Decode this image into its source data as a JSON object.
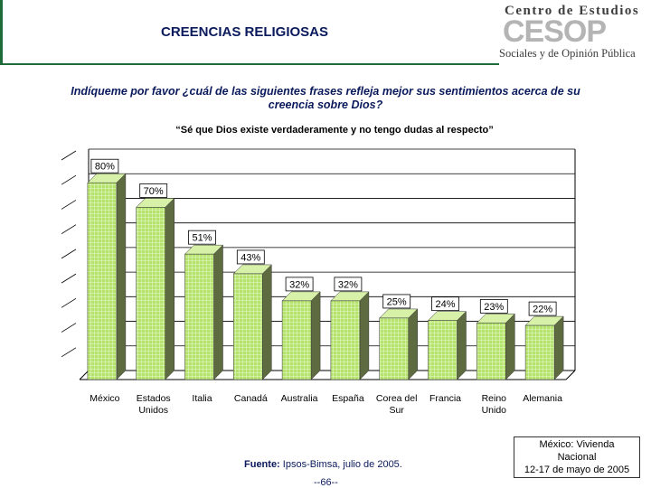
{
  "header": {
    "title": "CREENCIAS RELIGIOSAS",
    "logo_top": "Centro de Estudios",
    "logo_mark": "CESOP",
    "logo_bottom": "Sociales y de Opinión Pública"
  },
  "question": "Indíqueme por favor ¿cuál de las siguientes frases refleja mejor sus sentimientos acerca de su creencia sobre Dios?",
  "quote": "“Sé que Dios existe verdaderamente y no tengo dudas al respecto”",
  "chart_data": {
    "type": "bar",
    "categories": [
      "México",
      "Estados Unidos",
      "Italia",
      "Canadá",
      "Australia",
      "España",
      "Corea del Sur",
      "Francia",
      "Reino Unido",
      "Alemania"
    ],
    "category_lines": [
      [
        "México"
      ],
      [
        "Estados",
        "Unidos"
      ],
      [
        "Italia"
      ],
      [
        "Canadá"
      ],
      [
        "Australia"
      ],
      [
        "España"
      ],
      [
        "Corea del",
        "Sur"
      ],
      [
        "Francia"
      ],
      [
        "Reino",
        "Unido"
      ],
      [
        "Alemania"
      ]
    ],
    "values": [
      80,
      70,
      51,
      43,
      32,
      32,
      25,
      24,
      23,
      22
    ],
    "labels": [
      "80%",
      "70%",
      "51%",
      "43%",
      "32%",
      "32%",
      "25%",
      "24%",
      "23%",
      "22%"
    ],
    "unit": "%",
    "ylim": [
      0,
      90
    ],
    "ytick_step": 10,
    "grid": true,
    "bar_color": "#b6e36e",
    "title": "",
    "xlabel": "",
    "ylabel": ""
  },
  "footer": {
    "source_label": "Fuente:",
    "source_text": " Ipsos-Bimsa, julio de 2005.",
    "page": "--66--",
    "note_line1": "México: Vivienda",
    "note_line2": "Nacional",
    "note_line3": "12-17 de mayo de 2005"
  }
}
